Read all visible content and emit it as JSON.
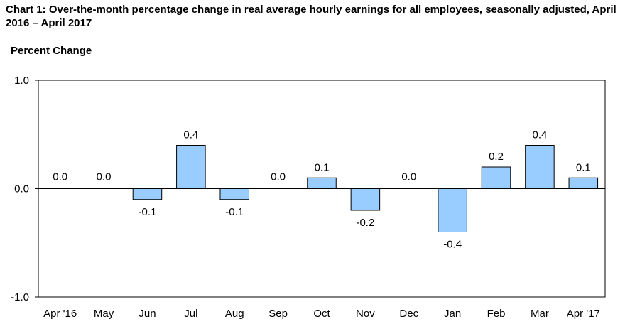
{
  "chart_data": {
    "type": "bar",
    "title": "Chart 1: Over-the-month percentage change in real average hourly earnings for all employees, seasonally adjusted, April 2016 – April 2017",
    "ylabel": "Percent Change",
    "xlabel": "",
    "ylim": [
      -1.0,
      1.0
    ],
    "yticks": [
      "1.0",
      "0.0",
      "-1.0"
    ],
    "categories": [
      "Apr '16",
      "May",
      "Jun",
      "Jul",
      "Aug",
      "Sep",
      "Oct",
      "Nov",
      "Dec",
      "Jan",
      "Feb",
      "Mar",
      "Apr '17"
    ],
    "values": [
      0.0,
      0.0,
      -0.1,
      0.4,
      -0.1,
      0.0,
      0.1,
      -0.2,
      0.0,
      -0.4,
      0.2,
      0.4,
      0.1
    ],
    "labels": [
      "0.0",
      "0.0",
      "-0.1",
      "0.4",
      "-0.1",
      "0.0",
      "0.1",
      "-0.2",
      "0.0",
      "-0.4",
      "0.2",
      "0.4",
      "0.1"
    ],
    "grid": false,
    "legend": "none",
    "bar_color": "#99CCFF",
    "bar_stroke": "#000000"
  }
}
